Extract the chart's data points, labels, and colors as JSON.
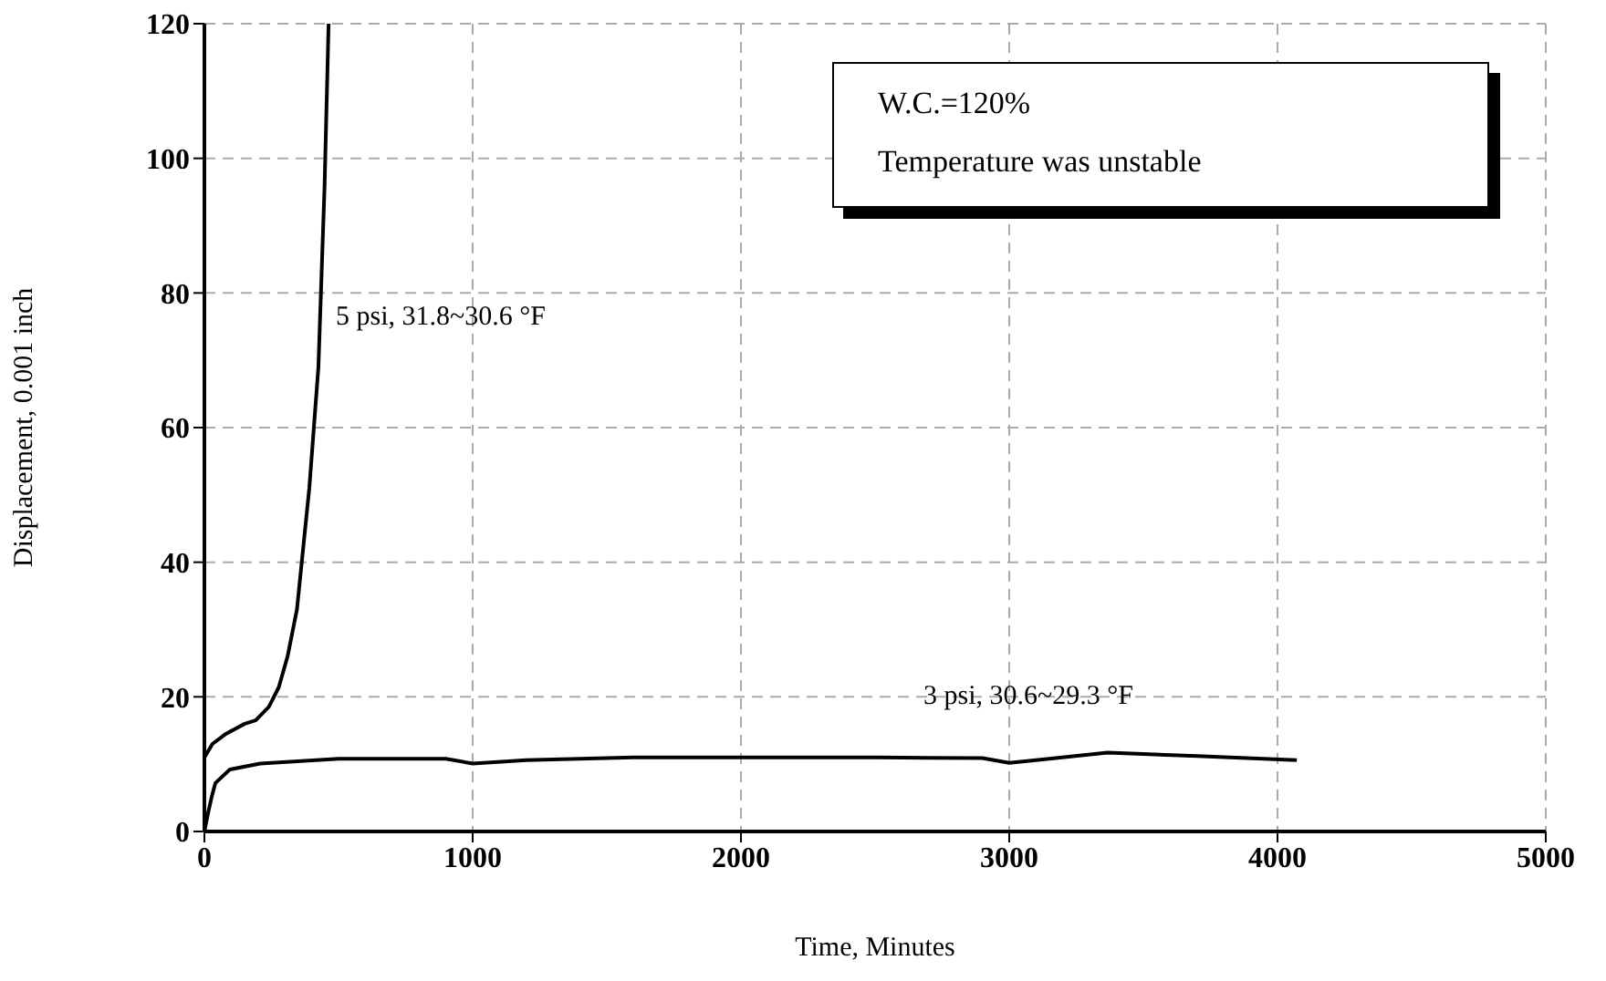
{
  "chart_data": {
    "type": "line",
    "xlabel": "Time, Minutes",
    "ylabel": "Displacement, 0.001 inch",
    "xlim": [
      0,
      5000
    ],
    "xticks": [
      0,
      1000,
      2000,
      3000,
      4000,
      5000
    ],
    "ylim": [
      0,
      120
    ],
    "yticks": [
      0,
      20,
      40,
      60,
      80,
      100,
      120
    ],
    "grid": true,
    "legend": false,
    "marker": "none",
    "line_style": "solid",
    "annotations": [
      "W.C.=120%",
      "Temperature was unstable"
    ],
    "series": [
      {
        "name": "5 psi, 31.8~30.6 °F",
        "color": "#000000",
        "x": [
          0,
          30,
          80,
          150,
          191,
          240,
          277,
          310,
          345,
          391,
          425,
          448,
          463
        ],
        "values": [
          11,
          13,
          14.5,
          16,
          16.5,
          18.5,
          21.4,
          26,
          33,
          51,
          69,
          96,
          120
        ]
      },
      {
        "name": "3 psi, 30.6~29.3 °F",
        "color": "#000000",
        "x": [
          0,
          15,
          27,
          41,
          95,
          208,
          500,
          900,
          1000,
          1200,
          1600,
          2000,
          2500,
          2900,
          3000,
          3100,
          3367,
          3700,
          4072
        ],
        "values": [
          0,
          3,
          5.1,
          7.2,
          9.2,
          10.1,
          10.8,
          10.8,
          10.1,
          10.6,
          11,
          11,
          11,
          10.9,
          10.2,
          10.6,
          11.7,
          11.2,
          10.6
        ]
      }
    ]
  }
}
